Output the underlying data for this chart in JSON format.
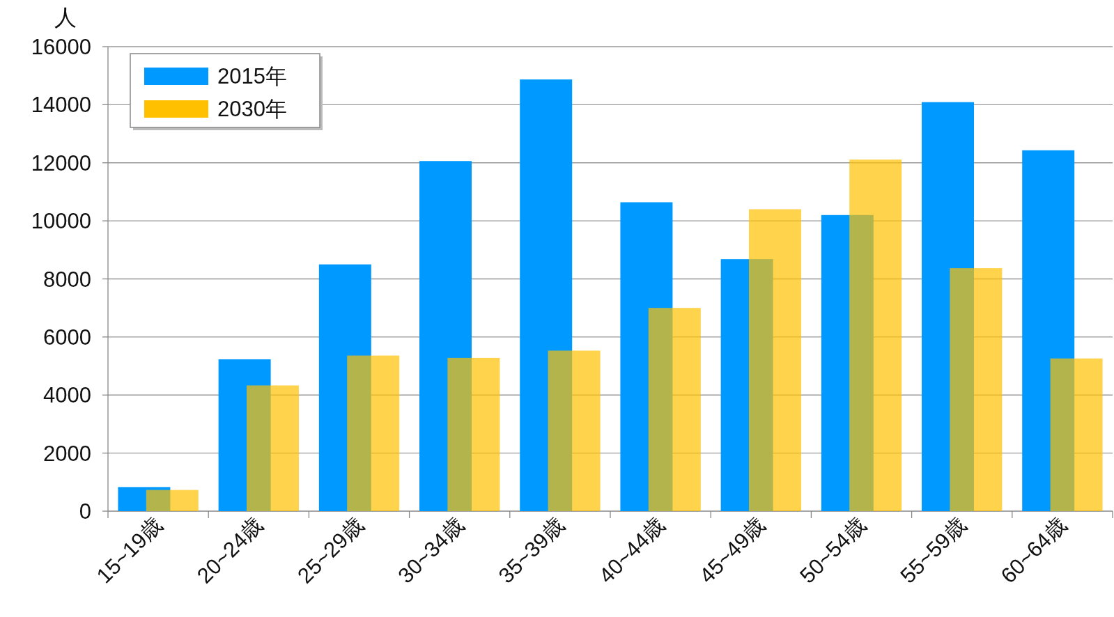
{
  "chart_data": {
    "type": "bar",
    "ylabel": "人",
    "categories": [
      "15~19歳",
      "20~24歳",
      "25~29歳",
      "30~34歳",
      "35~39歳",
      "40~44歳",
      "45~49歳",
      "50~54歳",
      "55~59歳",
      "60~64歳"
    ],
    "series": [
      {
        "name": "2015年",
        "color": "#0099ff",
        "values": [
          830,
          5230,
          8500,
          12060,
          14870,
          10640,
          8680,
          10200,
          14090,
          12430
        ]
      },
      {
        "name": "2030年",
        "color": "#ffc000",
        "values": [
          730,
          4330,
          5360,
          5280,
          5530,
          7000,
          10400,
          12110,
          8370,
          5260
        ]
      }
    ],
    "ylim": [
      0,
      16000
    ],
    "yticks": [
      0,
      2000,
      4000,
      6000,
      8000,
      10000,
      12000,
      14000,
      16000
    ],
    "grid": "y",
    "legend": "top left"
  }
}
